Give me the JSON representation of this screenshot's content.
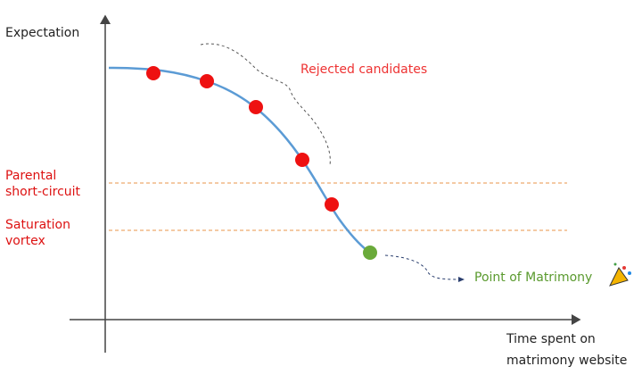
{
  "axes": {
    "y_label": "Expectation",
    "x_label": [
      "Time spent on",
      "matrimony website"
    ]
  },
  "annotations": {
    "rejected": "Rejected candidates",
    "parental": [
      "Parental",
      "short-circuit"
    ],
    "saturation": [
      "Saturation",
      "vortex"
    ],
    "matrimony": "Point of Matrimony"
  }
}
